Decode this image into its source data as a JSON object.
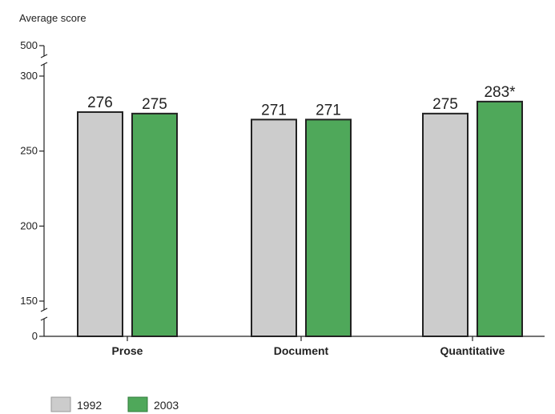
{
  "chart_data": {
    "type": "bar",
    "ylabel": "Average score",
    "categories": [
      "Prose",
      "Document",
      "Quantitative"
    ],
    "series": [
      {
        "name": "1992",
        "values": [
          276,
          271,
          275
        ],
        "labels": [
          "276",
          "271",
          "275"
        ],
        "color": "#cccccc"
      },
      {
        "name": "2003",
        "values": [
          275,
          271,
          283
        ],
        "labels": [
          "275",
          "271",
          "283*"
        ],
        "color": "#4fa85a"
      }
    ],
    "y_axis": {
      "ticks": [
        {
          "label": "0",
          "value": 0
        },
        {
          "label": "150",
          "value": 150
        },
        {
          "label": "200",
          "value": 200
        },
        {
          "label": "250",
          "value": 250
        },
        {
          "label": "300",
          "value": 300
        },
        {
          "label": "500",
          "value": 500
        }
      ],
      "axis_breaks": [
        "0-150",
        "300-500"
      ]
    },
    "grid": false,
    "legend_position": "bottom-left",
    "colors": {
      "bar_outline": "#222222",
      "axis": "#222222"
    }
  }
}
